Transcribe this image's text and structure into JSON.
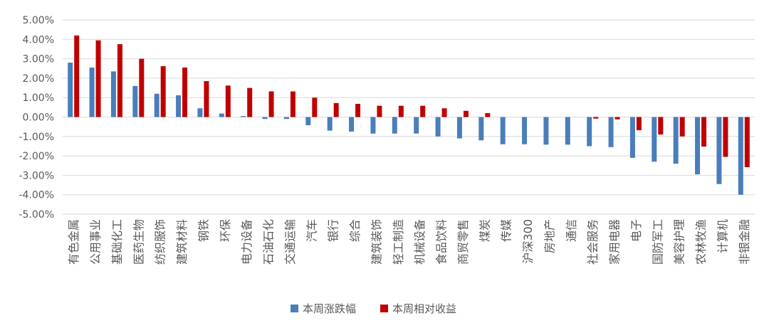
{
  "colors": {
    "series1": "#4a7ebb",
    "series2": "#c00000",
    "grid": "#d9d9d9",
    "text": "#595959"
  },
  "chart_data": {
    "type": "bar",
    "ylim": [
      -5,
      5
    ],
    "y_ticks": [
      "5.00%",
      "4.00%",
      "3.00%",
      "2.00%",
      "1.00%",
      "0.00%",
      "-1.00%",
      "-2.00%",
      "-3.00%",
      "-4.00%",
      "-5.00%"
    ],
    "grid": true,
    "legend_position": "bottom",
    "categories": [
      "有色金属",
      "公用事业",
      "基础化工",
      "医药生物",
      "纺织服饰",
      "建筑材料",
      "钢铁",
      "环保",
      "电力设备",
      "石油石化",
      "交通运输",
      "汽车",
      "银行",
      "综合",
      "建筑装饰",
      "轻工制造",
      "机械设备",
      "食品饮料",
      "商贸零售",
      "煤炭",
      "传媒",
      "沪深300",
      "房地产",
      "通信",
      "社会服务",
      "家用电器",
      "电子",
      "国防军工",
      "美容护理",
      "农林牧渔",
      "计算机",
      "非银金融"
    ],
    "series": [
      {
        "name": "本周涨跌幅",
        "values": [
          2.8,
          2.55,
          2.35,
          1.6,
          1.2,
          1.12,
          0.45,
          0.18,
          0.05,
          -0.1,
          -0.1,
          -0.42,
          -0.7,
          -0.75,
          -0.85,
          -0.85,
          -0.85,
          -1.0,
          -1.1,
          -1.2,
          -1.4,
          -1.4,
          -1.42,
          -1.42,
          -1.5,
          -1.55,
          -2.1,
          -2.3,
          -2.4,
          -2.95,
          -3.45,
          -4.0
        ]
      },
      {
        "name": "本周相对收益",
        "values": [
          4.2,
          3.95,
          3.75,
          3.0,
          2.62,
          2.55,
          1.85,
          1.62,
          1.5,
          1.32,
          1.32,
          1.0,
          0.72,
          0.68,
          0.58,
          0.58,
          0.58,
          0.45,
          0.32,
          0.2,
          0.0,
          0.0,
          0.0,
          0.0,
          -0.08,
          -0.12,
          -0.68,
          -0.9,
          -1.0,
          -1.52,
          -2.05,
          -2.58
        ]
      }
    ]
  }
}
